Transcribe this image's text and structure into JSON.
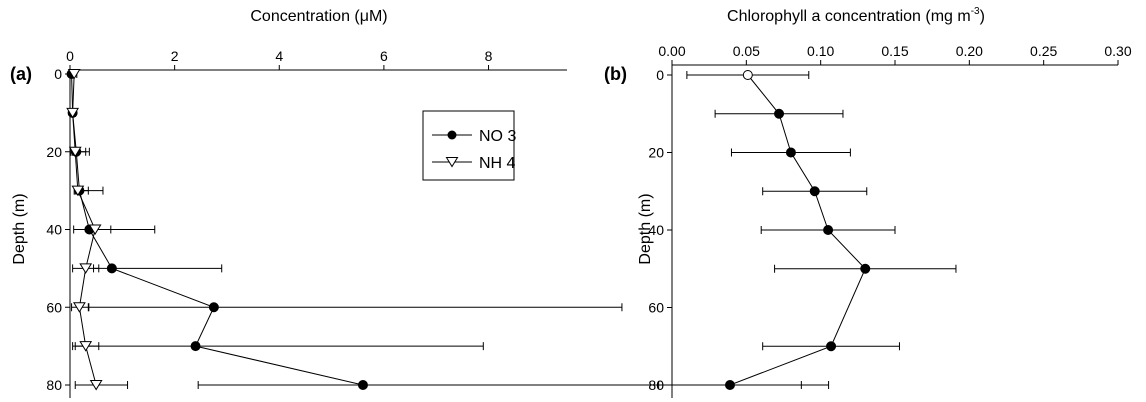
{
  "chart_data": [
    {
      "type": "line",
      "panel_label": "(a)",
      "title": "Concentration (μM)",
      "xlabel": "Concentration (μM)",
      "ylabel": "Depth (m)",
      "xlim": [
        0,
        9.5
      ],
      "ylim": [
        0,
        80
      ],
      "x_axis_position": "top",
      "y_reversed": true,
      "grid": false,
      "legend_position": "top-right",
      "x_ticks": [
        0,
        2,
        4,
        6,
        8
      ],
      "y_ticks": [
        0,
        20,
        40,
        60,
        80
      ],
      "series": [
        {
          "name": "NO 3",
          "marker": "filled-circle",
          "points": [
            {
              "depth": 0,
              "value": 0.03,
              "err_low": 0.03,
              "err_high": 0.03
            },
            {
              "depth": 10,
              "value": 0.05,
              "err_low": 0.05,
              "err_high": 0.05
            },
            {
              "depth": 20,
              "value": 0.12,
              "err_low": 0.1,
              "err_high": 0.25
            },
            {
              "depth": 30,
              "value": 0.18,
              "err_low": 0.1,
              "err_high": 0.45
            },
            {
              "depth": 40,
              "value": 0.37,
              "err_low": 0.3,
              "err_high": 1.25
            },
            {
              "depth": 50,
              "value": 0.8,
              "err_low": 0.35,
              "err_high": 2.1
            },
            {
              "depth": 60,
              "value": 2.75,
              "err_low": 2.4,
              "err_high": 7.8
            },
            {
              "depth": 70,
              "value": 2.4,
              "err_low": 2.3,
              "err_high": 5.5
            },
            {
              "depth": 80,
              "value": 5.6,
              "err_low": 3.15,
              "err_high": 8.9
            }
          ]
        },
        {
          "name": "NH 4",
          "marker": "open-triangle-down",
          "points": [
            {
              "depth": 0,
              "value": 0.08,
              "err_low": 0.05,
              "err_high": 0.05
            },
            {
              "depth": 10,
              "value": 0.05,
              "err_low": 0.05,
              "err_high": 0.05
            },
            {
              "depth": 20,
              "value": 0.1,
              "err_low": 0.05,
              "err_high": 0.2
            },
            {
              "depth": 30,
              "value": 0.15,
              "err_low": 0.05,
              "err_high": 0.2
            },
            {
              "depth": 40,
              "value": 0.48,
              "err_low": 0.1,
              "err_high": 0.3
            },
            {
              "depth": 50,
              "value": 0.3,
              "err_low": 0.25,
              "err_high": 0.25
            },
            {
              "depth": 60,
              "value": 0.18,
              "err_low": 0.15,
              "err_high": 0.18
            },
            {
              "depth": 70,
              "value": 0.3,
              "err_low": 0.25,
              "err_high": 0.25
            },
            {
              "depth": 80,
              "value": 0.5,
              "err_low": 0.4,
              "err_high": 0.6
            }
          ]
        }
      ]
    },
    {
      "type": "line",
      "panel_label": "(b)",
      "title": "Chlorophyll a concentration (mg m",
      "title_superscript": "-3",
      "title_suffix": ")",
      "xlabel": "Chlorophyll a concentration (mg m-3)",
      "ylabel": "Depth (m)",
      "xlim": [
        0,
        0.3
      ],
      "ylim": [
        0,
        80
      ],
      "x_axis_position": "top",
      "y_reversed": true,
      "grid": false,
      "x_ticks": [
        "0.00",
        "0.05",
        "0.10",
        "0.15",
        "0.20",
        "0.25",
        "0.30"
      ],
      "y_ticks": [
        0,
        20,
        40,
        60,
        80
      ],
      "series": [
        {
          "marker": "filled-circle",
          "first_marker_open": true,
          "points": [
            {
              "depth": 0,
              "value": 0.051,
              "err": 0.041
            },
            {
              "depth": 10,
              "value": 0.072,
              "err": 0.043
            },
            {
              "depth": 20,
              "value": 0.08,
              "err": 0.04
            },
            {
              "depth": 30,
              "value": 0.096,
              "err": 0.035
            },
            {
              "depth": 40,
              "value": 0.105,
              "err": 0.045
            },
            {
              "depth": 50,
              "value": 0.13,
              "err": 0.061
            },
            {
              "depth": 70,
              "value": 0.107,
              "err": 0.046
            },
            {
              "depth": 80,
              "value": 0.039,
              "err": 0.048
            }
          ]
        }
      ]
    }
  ]
}
